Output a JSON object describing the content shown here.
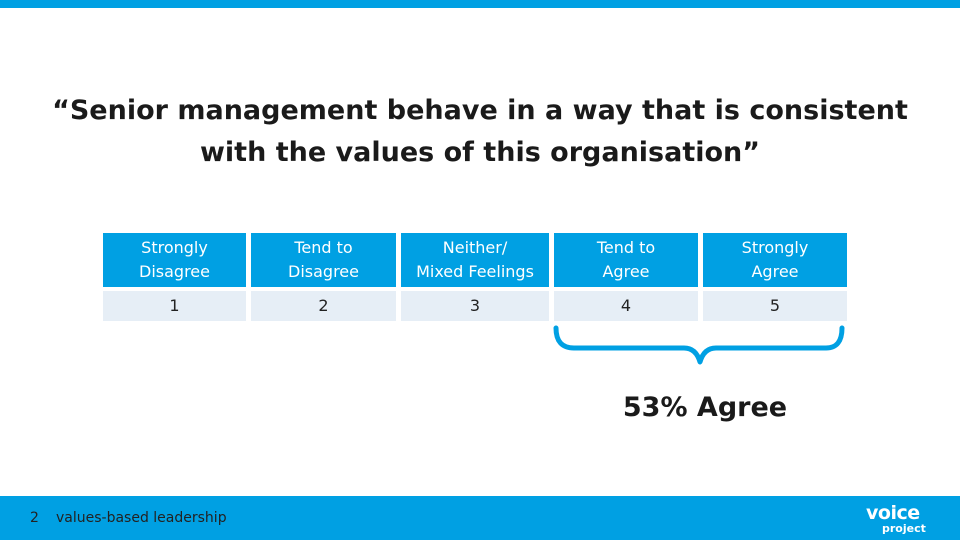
{
  "slide": {
    "title_line1": "“Senior management behave in a way that is consistent",
    "title_line2": "with the values of this organisation”"
  },
  "scale": {
    "options": [
      {
        "label_line1": "Strongly",
        "label_line2": "Disagree",
        "value": "1"
      },
      {
        "label_line1": "Tend to",
        "label_line2": "Disagree",
        "value": "2"
      },
      {
        "label_line1": "Neither/",
        "label_line2": "Mixed Feelings",
        "value": "3"
      },
      {
        "label_line1": "Tend to",
        "label_line2": "Agree",
        "value": "4"
      },
      {
        "label_line1": "Strongly",
        "label_line2": "Agree",
        "value": "5"
      }
    ],
    "header_color": "#00a0e3",
    "value_row_color": "#e6eef6"
  },
  "result": {
    "text": "53% Agree",
    "bracket_color": "#00a0e3"
  },
  "footer": {
    "slide_number": "2",
    "text": "values-based leadership",
    "logo_line1": "voice",
    "logo_line2": "project",
    "color": "#00a0e3"
  }
}
